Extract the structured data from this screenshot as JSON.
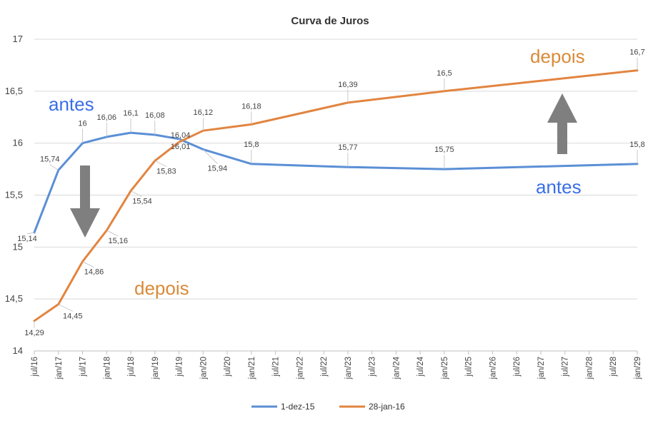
{
  "chart_data": {
    "type": "line",
    "title": "Curva de Juros",
    "xlabel": "",
    "ylabel": "",
    "ylim": [
      14,
      17
    ],
    "yticks": [
      "14",
      "14,5",
      "15",
      "15,5",
      "16",
      "16,5",
      "17"
    ],
    "categories": [
      "jul/16",
      "jan/17",
      "jul/17",
      "jan/18",
      "jul/18",
      "jan/19",
      "jul/19",
      "jan/20",
      "jul/20",
      "jan/21",
      "jul/21",
      "jan/22",
      "jul/22",
      "jan/23",
      "jul/23",
      "jan/24",
      "jul/24",
      "jan/25",
      "jul/25",
      "jan/26",
      "jul/26",
      "jan/27",
      "jul/27",
      "jan/28",
      "jul/28",
      "jan/29"
    ],
    "grid": true,
    "legend_position": "bottom",
    "series": [
      {
        "name": "1-dez-15",
        "color": "#5b8fd6",
        "points": [
          {
            "i": 0,
            "y": 15.14,
            "label": "15,14"
          },
          {
            "i": 1,
            "y": 15.74,
            "label": "15,74"
          },
          {
            "i": 2,
            "y": 16.0,
            "label": "16"
          },
          {
            "i": 3,
            "y": 16.06,
            "label": "16,06"
          },
          {
            "i": 4,
            "y": 16.1,
            "label": "16,1"
          },
          {
            "i": 5,
            "y": 16.08,
            "label": "16,08"
          },
          {
            "i": 6,
            "y": 16.04,
            "label": "16,04"
          },
          {
            "i": 7,
            "y": 15.94,
            "label": "15,94"
          },
          {
            "i": 9,
            "y": 15.8,
            "label": "15,8"
          },
          {
            "i": 13,
            "y": 15.77,
            "label": "15,77"
          },
          {
            "i": 17,
            "y": 15.75,
            "label": "15,75"
          },
          {
            "i": 25,
            "y": 15.8,
            "label": "15,8"
          }
        ]
      },
      {
        "name": "28-jan-16",
        "color": "#e2843f",
        "points": [
          {
            "i": 0,
            "y": 14.29,
            "label": "14,29"
          },
          {
            "i": 1,
            "y": 14.45,
            "label": "14,45"
          },
          {
            "i": 2,
            "y": 14.86,
            "label": "14,86"
          },
          {
            "i": 3,
            "y": 15.16,
            "label": "15,16"
          },
          {
            "i": 4,
            "y": 15.54,
            "label": "15,54"
          },
          {
            "i": 5,
            "y": 15.83,
            "label": "15,83"
          },
          {
            "i": 6,
            "y": 16.01,
            "label": "16,01"
          },
          {
            "i": 7,
            "y": 16.12,
            "label": "16,12"
          },
          {
            "i": 9,
            "y": 16.18,
            "label": "16,18"
          },
          {
            "i": 13,
            "y": 16.39,
            "label": "16,39"
          },
          {
            "i": 17,
            "y": 16.5,
            "label": "16,5"
          },
          {
            "i": 25,
            "y": 16.7,
            "label": "16,7"
          }
        ]
      }
    ],
    "annotations": [
      {
        "text": "antes",
        "color": "#3a6ee8"
      },
      {
        "text": "depois",
        "color": "#d98a38"
      },
      {
        "text": "depois",
        "color": "#d98a38"
      },
      {
        "text": "antes",
        "color": "#3a6ee8"
      }
    ],
    "arrows": [
      {
        "direction": "down",
        "color": "#7f7f7f"
      },
      {
        "direction": "up",
        "color": "#7f7f7f"
      }
    ]
  }
}
